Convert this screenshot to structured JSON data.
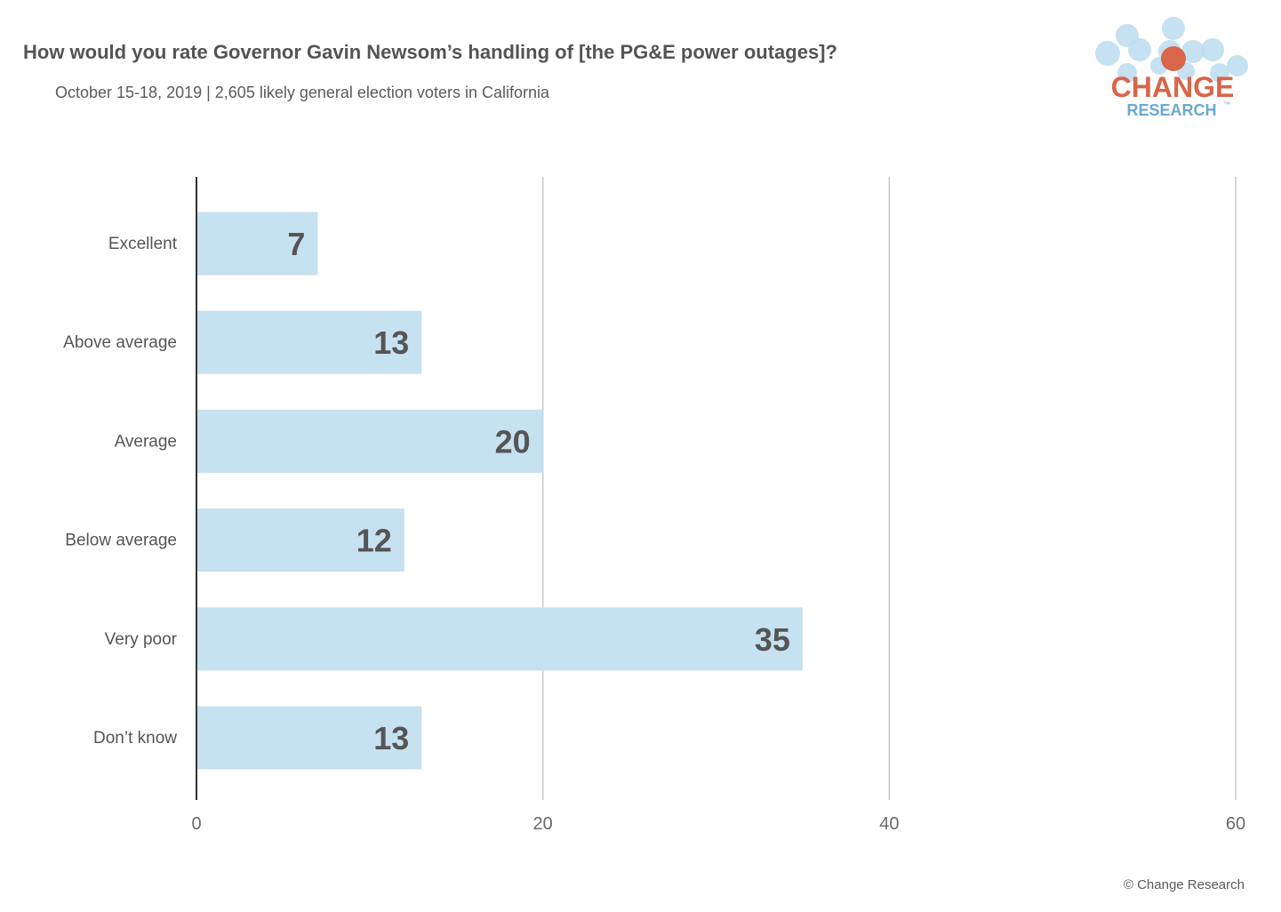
{
  "header": {
    "title": "How would you rate Governor Gavin Newsom’s handling of [the PG&E power outages]?",
    "subtitle": "October 15-18, 2019  | 2,605 likely general election voters in California"
  },
  "logo": {
    "line1": "CHANGE",
    "line2": "RESEARCH",
    "trademark": "™",
    "accent_color": "#d9654a",
    "secondary_color": "#6aa9d3",
    "bubble_color": "#bcdcf0"
  },
  "footer": {
    "copyright": "© Change Research"
  },
  "chart_data": {
    "type": "bar",
    "orientation": "horizontal",
    "title": "How would you rate Governor Gavin Newsom’s handling of [the PG&E power outages]?",
    "categories": [
      "Excellent",
      "Above average",
      "Average",
      "Below average",
      "Very poor",
      "Don’t know"
    ],
    "values": [
      7,
      13,
      20,
      12,
      35,
      13
    ],
    "xlim": [
      0,
      60
    ],
    "xticks": [
      0,
      20,
      40,
      60
    ],
    "grid": true,
    "legend": "none",
    "colors": {
      "bar": "#c6e1f0",
      "grid": "#c8c8c8",
      "axis": "#333333"
    }
  }
}
